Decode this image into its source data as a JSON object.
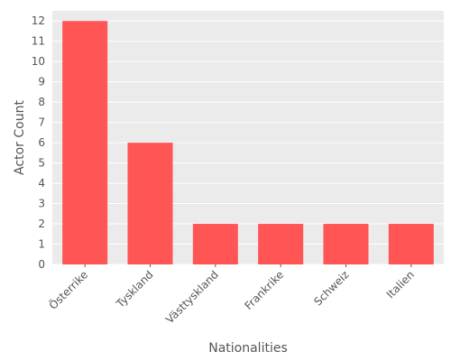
{
  "chart_data": {
    "type": "bar",
    "title": "",
    "xlabel": "Nationalities",
    "ylabel": "Actor Count",
    "categories": [
      "Österrike",
      "Tyskland",
      "Västtyskland",
      "Frankrike",
      "Schweiz",
      "Italien"
    ],
    "values": [
      12,
      6,
      2,
      2,
      2,
      2
    ],
    "ylim": [
      0,
      12.5
    ],
    "yticks": [
      0,
      1,
      2,
      3,
      4,
      5,
      6,
      7,
      8,
      9,
      10,
      11,
      12
    ],
    "grid": true,
    "colors": {
      "bar": "#FF5555",
      "panel": "#EBEBEB",
      "grid": "#FFFFFF",
      "text": "#555555"
    }
  }
}
